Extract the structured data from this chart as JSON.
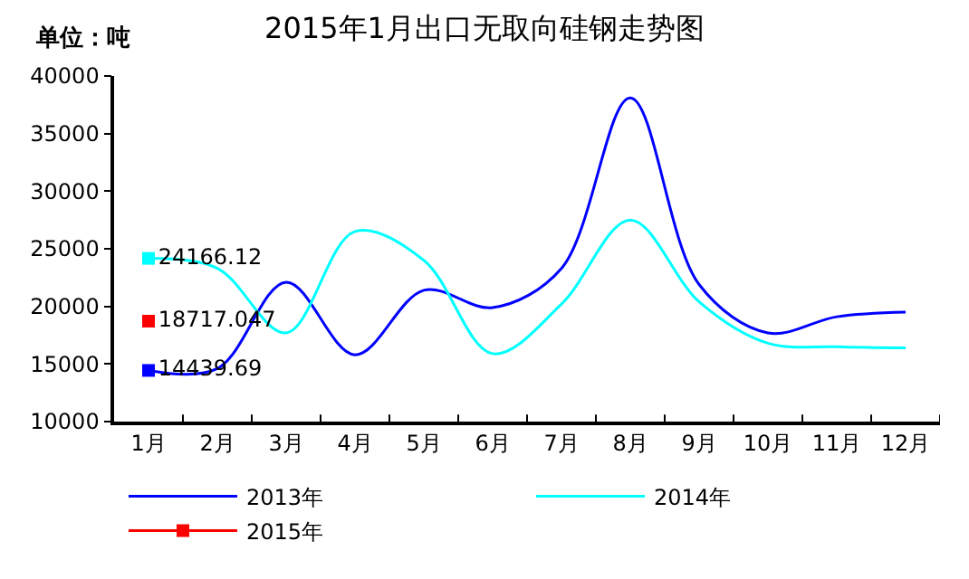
{
  "chart_data": {
    "type": "line",
    "title": "2015年1月出口无取向硅钢走势图",
    "ylabel": "单位：吨",
    "categories": [
      "1月",
      "2月",
      "3月",
      "4月",
      "5月",
      "6月",
      "7月",
      "8月",
      "9月",
      "10月",
      "11月",
      "12月"
    ],
    "series": [
      {
        "name": "2013年",
        "color": "#0000ff",
        "marker": "none",
        "values": [
          14439.69,
          14600,
          22100,
          15800,
          21400,
          19900,
          23300,
          38100,
          21900,
          17700,
          19100,
          19500
        ]
      },
      {
        "name": "2014年",
        "color": "#00ffff",
        "marker": "none",
        "values": [
          24166.12,
          23300,
          17700,
          26500,
          24000,
          15900,
          20200,
          27500,
          20400,
          16800,
          16500,
          16400
        ]
      },
      {
        "name": "2015年",
        "color": "#ff0000",
        "marker": "square",
        "values": [
          18717.047,
          null,
          null,
          null,
          null,
          null,
          null,
          null,
          null,
          null,
          null,
          null
        ],
        "value_labels": [
          "18717.047",
          null,
          null,
          null,
          null,
          null,
          null,
          null,
          null,
          null,
          null,
          null
        ]
      },
      {
        "type": "scatter",
        "color": "#0000ff",
        "marker": "square",
        "values": [
          14439.69,
          null,
          null,
          null,
          null,
          null,
          null,
          null,
          null,
          null,
          null,
          null
        ],
        "value_labels": [
          "14439.69",
          null,
          null,
          null,
          null,
          null,
          null,
          null,
          null,
          null,
          null,
          null
        ]
      },
      {
        "type": "scatter",
        "color": "#00ffff",
        "marker": "square",
        "values": [
          24166.12,
          null,
          null,
          null,
          null,
          null,
          null,
          null,
          null,
          null,
          null,
          null
        ],
        "value_labels": [
          "24166.12",
          null,
          null,
          null,
          null,
          null,
          null,
          null,
          null,
          null,
          null,
          null
        ]
      }
    ],
    "ylim": [
      10000,
      40000
    ],
    "yticks": [
      10000,
      15000,
      20000,
      25000,
      30000,
      35000,
      40000
    ],
    "grid": false,
    "legend": "bottom"
  }
}
